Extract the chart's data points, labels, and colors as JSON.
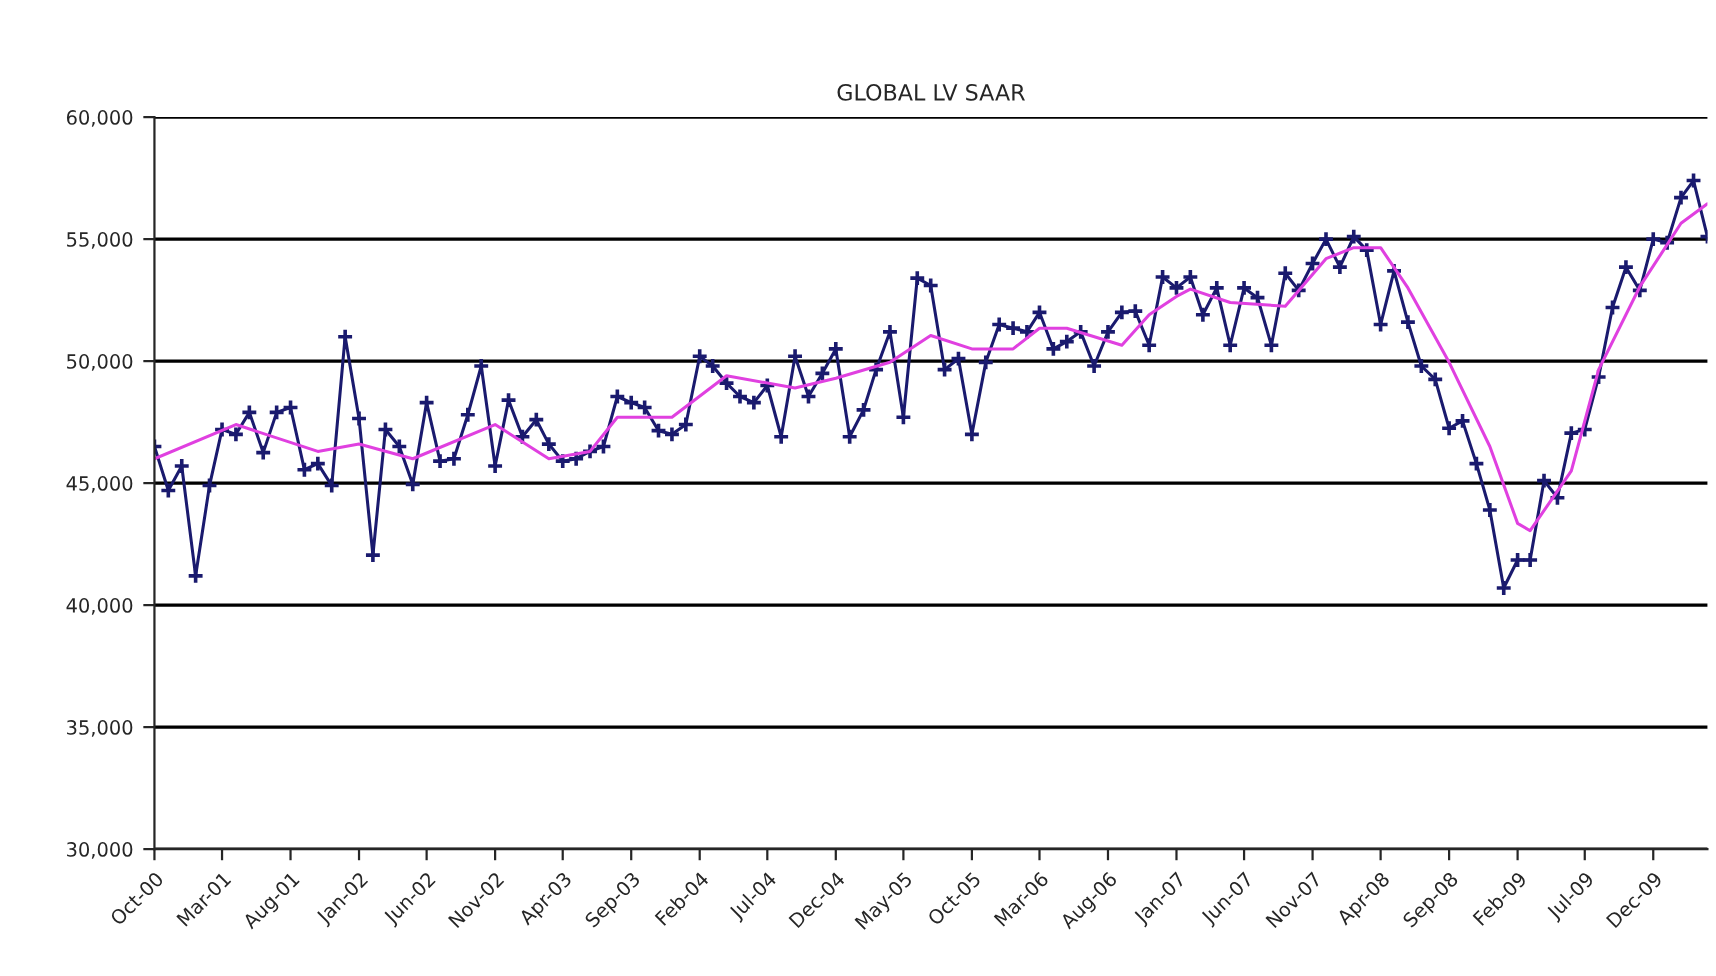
{
  "chart_data": {
    "type": "line",
    "title": "GLOBAL LV SAAR",
    "x": [
      "2000-10",
      "2000-11",
      "2000-12",
      "2001-01",
      "2001-02",
      "2001-03",
      "2001-04",
      "2001-05",
      "2001-06",
      "2001-07",
      "2001-08",
      "2001-09",
      "2001-10",
      "2001-11",
      "2001-12",
      "2002-01",
      "2002-02",
      "2002-03",
      "2002-04",
      "2002-05",
      "2002-06",
      "2002-07",
      "2002-08",
      "2002-09",
      "2002-10",
      "2002-11",
      "2002-12",
      "2003-01",
      "2003-02",
      "2003-03",
      "2003-04",
      "2003-05",
      "2003-06",
      "2003-07",
      "2003-08",
      "2003-09",
      "2003-10",
      "2003-11",
      "2003-12",
      "2004-01",
      "2004-02",
      "2004-03",
      "2004-04",
      "2004-05",
      "2004-06",
      "2004-07",
      "2004-08",
      "2004-09",
      "2004-10",
      "2004-11",
      "2004-12",
      "2005-01",
      "2005-02",
      "2005-03",
      "2005-04",
      "2005-05",
      "2005-06",
      "2005-07",
      "2005-08",
      "2005-09",
      "2005-10",
      "2005-11",
      "2005-12",
      "2006-01",
      "2006-02",
      "2006-03",
      "2006-04",
      "2006-05",
      "2006-06",
      "2006-07",
      "2006-08",
      "2006-09",
      "2006-10",
      "2006-11",
      "2006-12",
      "2007-01",
      "2007-02",
      "2007-03",
      "2007-04",
      "2007-05",
      "2007-06",
      "2007-07",
      "2007-08",
      "2007-09",
      "2007-10",
      "2007-11",
      "2007-12",
      "2008-01",
      "2008-02",
      "2008-03",
      "2008-04",
      "2008-05",
      "2008-06",
      "2008-07",
      "2008-08",
      "2008-09",
      "2008-10",
      "2008-11",
      "2008-12",
      "2009-01",
      "2009-02",
      "2009-03",
      "2009-04",
      "2009-05",
      "2009-06",
      "2009-07",
      "2009-08",
      "2009-09",
      "2009-10",
      "2009-11",
      "2009-12",
      "2010-01",
      "2010-02",
      "2010-03",
      "2010-04"
    ],
    "series": [
      {
        "color": "#1a1a6e",
        "marker": "cross",
        "values": [
          46500,
          44700,
          45700,
          41200,
          44900,
          47200,
          47000,
          47900,
          46250,
          47900,
          48100,
          45550,
          45800,
          44900,
          51000,
          47650,
          42050,
          47200,
          46500,
          44950,
          48300,
          45900,
          46000,
          47800,
          49800,
          45700,
          48400,
          46900,
          47600,
          46600,
          45900,
          46000,
          46300,
          46500,
          48550,
          48300,
          48100,
          47150,
          47000,
          47400,
          50200,
          49800,
          49100,
          48550,
          48300,
          49000,
          46900,
          50200,
          48550,
          49500,
          50500,
          46900,
          48000,
          49650,
          51200,
          47700,
          53400,
          53100,
          49650,
          50100,
          47000,
          49950,
          51500,
          51350,
          51200,
          52000,
          50500,
          50800,
          51200,
          49800,
          51200,
          52000,
          52050,
          50650,
          53450,
          53000,
          53450,
          51900,
          53000,
          50650,
          53000,
          52600,
          50650,
          53600,
          52900,
          54000,
          55000,
          53850,
          55100,
          54550,
          51500,
          53700,
          51600,
          49800,
          49250,
          47250,
          47550,
          45800,
          43900,
          40700,
          41850,
          41850,
          45100,
          44400,
          47050,
          47200,
          49350,
          52200,
          53850,
          52900,
          55000,
          54850,
          56700,
          57400,
          55100
        ]
      },
      {
        "color": "#e040e0",
        "x": [
          "2000-10",
          "2001-04",
          "2001-10",
          "2002-01",
          "2002-05",
          "2002-11",
          "2003-03",
          "2003-06",
          "2003-08",
          "2003-12",
          "2004-04",
          "2004-09",
          "2004-12",
          "2005-04",
          "2005-07",
          "2005-10",
          "2006-01",
          "2006-03",
          "2006-05",
          "2006-09",
          "2006-11",
          "2007-01",
          "2007-02",
          "2007-05",
          "2007-09",
          "2007-12",
          "2008-02",
          "2008-04",
          "2008-06",
          "2008-09",
          "2008-12",
          "2009-02",
          "2009-03",
          "2009-06",
          "2009-08",
          "2009-11",
          "2010-02",
          "2010-04"
        ],
        "values": [
          46000,
          47400,
          46300,
          46600,
          46000,
          47400,
          46000,
          46300,
          47700,
          47700,
          49400,
          48900,
          49300,
          49950,
          51050,
          50500,
          50500,
          51350,
          51350,
          50650,
          51900,
          52650,
          52950,
          52400,
          52250,
          54200,
          54650,
          54650,
          53000,
          49950,
          46500,
          43350,
          43050,
          45500,
          49650,
          53050,
          55650,
          56450
        ]
      }
    ],
    "xlim": [
      "2000-10",
      "2010-04"
    ],
    "xticks": [
      {
        "value": "2000-10",
        "label": "Oct-00"
      },
      {
        "value": "2001-03",
        "label": "Mar-01"
      },
      {
        "value": "2001-08",
        "label": "Aug-01"
      },
      {
        "value": "2002-01",
        "label": "Jan-02"
      },
      {
        "value": "2002-06",
        "label": "Jun-02"
      },
      {
        "value": "2002-11",
        "label": "Nov-02"
      },
      {
        "value": "2003-04",
        "label": "Apr-03"
      },
      {
        "value": "2003-09",
        "label": "Sep-03"
      },
      {
        "value": "2004-02",
        "label": "Feb-04"
      },
      {
        "value": "2004-07",
        "label": "Jul-04"
      },
      {
        "value": "2004-12",
        "label": "Dec-04"
      },
      {
        "value": "2005-05",
        "label": "May-05"
      },
      {
        "value": "2005-10",
        "label": "Oct-05"
      },
      {
        "value": "2006-03",
        "label": "Mar-06"
      },
      {
        "value": "2006-08",
        "label": "Aug-06"
      },
      {
        "value": "2007-01",
        "label": "Jan-07"
      },
      {
        "value": "2007-06",
        "label": "Jun-07"
      },
      {
        "value": "2007-11",
        "label": "Nov-07"
      },
      {
        "value": "2008-04",
        "label": "Apr-08"
      },
      {
        "value": "2008-09",
        "label": "Sep-08"
      },
      {
        "value": "2009-02",
        "label": "Feb-09"
      },
      {
        "value": "2009-07",
        "label": "Jul-09"
      },
      {
        "value": "2009-12",
        "label": "Dec-09"
      }
    ],
    "ylim": [
      30000,
      60000
    ],
    "yticks": [
      {
        "value": 30000,
        "label": "30,000"
      },
      {
        "value": 35000,
        "label": "35,000"
      },
      {
        "value": 40000,
        "label": "40,000"
      },
      {
        "value": 45000,
        "label": "45,000"
      },
      {
        "value": 50000,
        "label": "50,000"
      },
      {
        "value": 55000,
        "label": "55,000"
      },
      {
        "value": 60000,
        "label": "60,000"
      }
    ],
    "grid": "y",
    "legend": false
  }
}
